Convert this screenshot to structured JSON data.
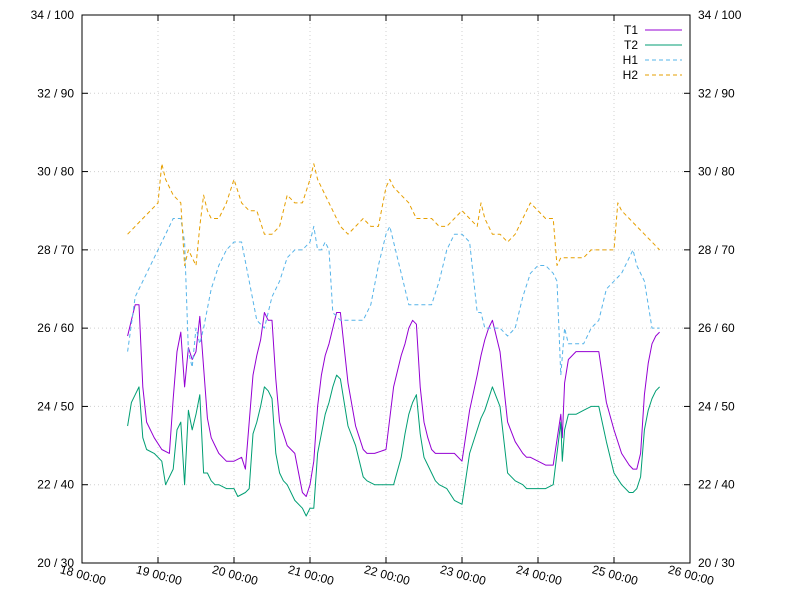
{
  "chart_data": {
    "type": "line",
    "x_axis": {
      "kind": "time",
      "range": [
        "18 00:00",
        "26 00:00"
      ],
      "tick_labels": [
        "18 00:00",
        "19 00:00",
        "20 00:00",
        "21 00:00",
        "22 00:00",
        "23 00:00",
        "24 00:00",
        "25 00:00",
        "26 00:00"
      ],
      "tick_label_rotation_deg": 15
    },
    "y_axis": {
      "range_temperature": [
        20,
        34
      ],
      "range_humidity": [
        30,
        100
      ],
      "tick_labels": [
        "20 / 30",
        "22 / 40",
        "24 / 50",
        "26 / 60",
        "28 / 70",
        "30 / 80",
        "32 / 90",
        "34 / 100"
      ],
      "ticks_on_both_sides": true
    },
    "grid": true,
    "legend_position": "top-right",
    "series": [
      {
        "name": "T1",
        "axis": "temperature",
        "color": "#9400d3",
        "dash": "solid",
        "x": [
          18.6,
          18.65,
          18.7,
          18.75,
          18.8,
          18.85,
          18.95,
          19.05,
          19.15,
          19.2,
          19.25,
          19.3,
          19.35,
          19.4,
          19.45,
          19.5,
          19.55,
          19.6,
          19.65,
          19.7,
          19.75,
          19.8,
          19.9,
          20.0,
          20.1,
          20.15,
          20.2,
          20.25,
          20.3,
          20.35,
          20.4,
          20.45,
          20.5,
          20.55,
          20.6,
          20.65,
          20.7,
          20.8,
          20.9,
          20.95,
          21.0,
          21.05,
          21.1,
          21.15,
          21.2,
          21.25,
          21.3,
          21.35,
          21.4,
          21.5,
          21.6,
          21.65,
          21.7,
          21.75,
          21.85,
          22.0,
          22.1,
          22.2,
          22.25,
          22.3,
          22.35,
          22.4,
          22.45,
          22.5,
          22.55,
          22.6,
          22.65,
          22.7,
          22.8,
          22.9,
          23.0,
          23.1,
          23.2,
          23.25,
          23.3,
          23.35,
          23.4,
          23.5,
          23.6,
          23.7,
          23.8,
          23.85,
          23.9,
          24.0,
          24.1,
          24.2,
          24.3,
          24.32,
          24.35,
          24.4,
          24.5,
          24.6,
          24.7,
          24.8,
          24.9,
          25.0,
          25.1,
          25.2,
          25.25,
          25.3,
          25.35,
          25.4,
          25.45,
          25.5,
          25.55,
          25.6
        ],
        "y": [
          25.8,
          26.2,
          26.6,
          26.6,
          24.5,
          23.6,
          23.2,
          22.9,
          22.8,
          24.2,
          25.4,
          25.9,
          24.5,
          25.5,
          25.2,
          25.4,
          26.3,
          25.0,
          23.7,
          23.2,
          23.0,
          22.8,
          22.6,
          22.6,
          22.7,
          22.4,
          23.6,
          24.8,
          25.3,
          25.7,
          26.4,
          26.2,
          26.2,
          24.7,
          23.6,
          23.3,
          23.0,
          22.8,
          21.8,
          21.7,
          22.0,
          22.6,
          24.0,
          24.8,
          25.3,
          25.6,
          26.0,
          26.4,
          26.4,
          24.6,
          23.5,
          23.2,
          22.9,
          22.8,
          22.8,
          22.9,
          24.5,
          25.3,
          25.6,
          26.0,
          26.2,
          26.1,
          24.5,
          23.6,
          23.2,
          22.9,
          22.8,
          22.8,
          22.8,
          22.8,
          22.6,
          23.9,
          24.8,
          25.3,
          25.7,
          26.0,
          26.2,
          25.4,
          23.6,
          23.1,
          22.8,
          22.7,
          22.7,
          22.6,
          22.5,
          22.5,
          23.8,
          23.2,
          24.6,
          25.2,
          25.4,
          25.4,
          25.4,
          25.4,
          24.1,
          23.4,
          22.8,
          22.5,
          22.4,
          22.4,
          22.8,
          24.3,
          25.1,
          25.6,
          25.8,
          25.9
        ]
      },
      {
        "name": "T2",
        "axis": "temperature",
        "color": "#009e73",
        "dash": "solid",
        "x": [
          18.6,
          18.65,
          18.7,
          18.75,
          18.8,
          18.85,
          18.95,
          19.05,
          19.1,
          19.2,
          19.25,
          19.3,
          19.35,
          19.4,
          19.45,
          19.5,
          19.55,
          19.6,
          19.65,
          19.7,
          19.75,
          19.8,
          19.9,
          20.0,
          20.05,
          20.15,
          20.2,
          20.25,
          20.3,
          20.35,
          20.4,
          20.45,
          20.5,
          20.55,
          20.6,
          20.65,
          20.7,
          20.8,
          20.9,
          20.95,
          21.0,
          21.05,
          21.1,
          21.15,
          21.2,
          21.25,
          21.3,
          21.35,
          21.4,
          21.5,
          21.6,
          21.65,
          21.7,
          21.75,
          21.85,
          22.0,
          22.1,
          22.2,
          22.25,
          22.3,
          22.35,
          22.4,
          22.45,
          22.5,
          22.55,
          22.6,
          22.65,
          22.7,
          22.8,
          22.9,
          23.0,
          23.1,
          23.2,
          23.25,
          23.3,
          23.35,
          23.4,
          23.5,
          23.6,
          23.7,
          23.8,
          23.85,
          23.9,
          24.0,
          24.1,
          24.2,
          24.3,
          24.32,
          24.35,
          24.4,
          24.5,
          24.6,
          24.7,
          24.8,
          24.9,
          25.0,
          25.1,
          25.2,
          25.25,
          25.3,
          25.35,
          25.4,
          25.45,
          25.5,
          25.55,
          25.6
        ],
        "y": [
          23.5,
          24.1,
          24.3,
          24.5,
          23.2,
          22.9,
          22.8,
          22.6,
          22.0,
          22.4,
          23.4,
          23.6,
          22.0,
          23.9,
          23.4,
          23.8,
          24.3,
          22.3,
          22.3,
          22.1,
          22.0,
          22.0,
          21.9,
          21.9,
          21.7,
          21.8,
          21.9,
          23.3,
          23.6,
          24.0,
          24.5,
          24.4,
          24.2,
          22.8,
          22.3,
          22.1,
          22.0,
          21.6,
          21.4,
          21.2,
          21.4,
          21.4,
          22.8,
          23.3,
          23.8,
          24.1,
          24.5,
          24.8,
          24.7,
          23.5,
          23.0,
          22.6,
          22.2,
          22.1,
          22.0,
          22.0,
          22.0,
          22.7,
          23.3,
          23.8,
          24.1,
          24.3,
          23.3,
          22.7,
          22.5,
          22.3,
          22.1,
          22.0,
          21.9,
          21.6,
          21.5,
          22.8,
          23.4,
          23.7,
          23.9,
          24.2,
          24.5,
          24.0,
          22.3,
          22.1,
          22.0,
          21.9,
          21.9,
          21.9,
          21.9,
          22.0,
          23.6,
          22.6,
          23.4,
          23.8,
          23.8,
          23.9,
          24.0,
          24.0,
          23.1,
          22.3,
          22.0,
          21.8,
          21.8,
          21.9,
          22.2,
          23.4,
          23.9,
          24.2,
          24.4,
          24.5
        ]
      },
      {
        "name": "H1",
        "axis": "humidity",
        "color": "#56b4e9",
        "dash": "dashed",
        "x": [
          18.6,
          18.7,
          18.8,
          18.9,
          19.0,
          19.1,
          19.2,
          19.3,
          19.35,
          19.4,
          19.45,
          19.5,
          19.55,
          19.6,
          19.7,
          19.8,
          19.9,
          20.0,
          20.1,
          20.2,
          20.3,
          20.4,
          20.5,
          20.6,
          20.7,
          20.8,
          20.9,
          21.0,
          21.05,
          21.1,
          21.15,
          21.2,
          21.25,
          21.3,
          21.4,
          21.5,
          21.6,
          21.7,
          21.8,
          21.9,
          22.0,
          22.05,
          22.1,
          22.2,
          22.3,
          22.4,
          22.5,
          22.6,
          22.7,
          22.8,
          22.9,
          23.0,
          23.1,
          23.2,
          23.25,
          23.3,
          23.4,
          23.5,
          23.6,
          23.7,
          23.8,
          23.9,
          24.0,
          24.1,
          24.2,
          24.25,
          24.3,
          24.35,
          24.4,
          24.5,
          24.6,
          24.7,
          24.8,
          24.9,
          25.0,
          25.1,
          25.2,
          25.25,
          25.3,
          25.4,
          25.5,
          25.6
        ],
        "y": [
          57,
          64,
          66,
          68,
          70,
          72,
          74,
          74,
          71,
          57,
          55,
          60,
          58,
          60,
          65,
          68,
          70,
          71,
          71,
          66,
          61,
          60,
          64,
          66,
          69,
          70,
          70,
          71,
          73,
          70,
          70,
          71,
          70,
          62,
          61,
          61,
          61,
          61,
          63,
          68,
          72,
          73,
          71,
          67,
          63,
          63,
          63,
          63,
          66,
          70,
          72,
          72,
          71,
          62,
          62,
          60,
          60,
          60,
          59,
          60,
          64,
          67,
          68,
          68,
          67,
          66,
          54,
          60,
          58,
          58,
          58,
          60,
          61,
          65,
          66,
          67,
          69,
          70,
          68,
          66,
          60,
          60
        ]
      },
      {
        "name": "H2",
        "axis": "humidity",
        "color": "#e69f00",
        "dash": "dashed",
        "x": [
          18.6,
          18.7,
          18.8,
          18.9,
          19.0,
          19.05,
          19.1,
          19.2,
          19.3,
          19.35,
          19.4,
          19.45,
          19.5,
          19.55,
          19.6,
          19.65,
          19.7,
          19.8,
          19.9,
          20.0,
          20.1,
          20.2,
          20.3,
          20.4,
          20.5,
          20.6,
          20.7,
          20.8,
          20.9,
          21.0,
          21.05,
          21.1,
          21.2,
          21.3,
          21.4,
          21.5,
          21.6,
          21.7,
          21.8,
          21.9,
          22.0,
          22.05,
          22.1,
          22.2,
          22.3,
          22.4,
          22.5,
          22.6,
          22.7,
          22.8,
          22.9,
          23.0,
          23.1,
          23.2,
          23.25,
          23.3,
          23.4,
          23.5,
          23.6,
          23.7,
          23.8,
          23.9,
          24.0,
          24.1,
          24.2,
          24.25,
          24.3,
          24.4,
          24.5,
          24.6,
          24.7,
          24.8,
          24.9,
          25.0,
          25.05,
          25.1,
          25.2,
          25.3,
          25.4,
          25.5,
          25.6
        ],
        "y": [
          72,
          73,
          74,
          75,
          76,
          81,
          79,
          77,
          76,
          68,
          70,
          69,
          68,
          73,
          77,
          75,
          74,
          74,
          76,
          79,
          76,
          75,
          75,
          72,
          72,
          73,
          77,
          76,
          76,
          79,
          81,
          79,
          77,
          75,
          73,
          72,
          73,
          74,
          73,
          73,
          78,
          79,
          78,
          77,
          76,
          74,
          74,
          74,
          73,
          73,
          74,
          75,
          74,
          73,
          76,
          74,
          72,
          72,
          71,
          72,
          74,
          76,
          75,
          74,
          74,
          68,
          69,
          69,
          69,
          69,
          70,
          70,
          70,
          70,
          76,
          75,
          74,
          73,
          72,
          71,
          70
        ]
      }
    ]
  }
}
